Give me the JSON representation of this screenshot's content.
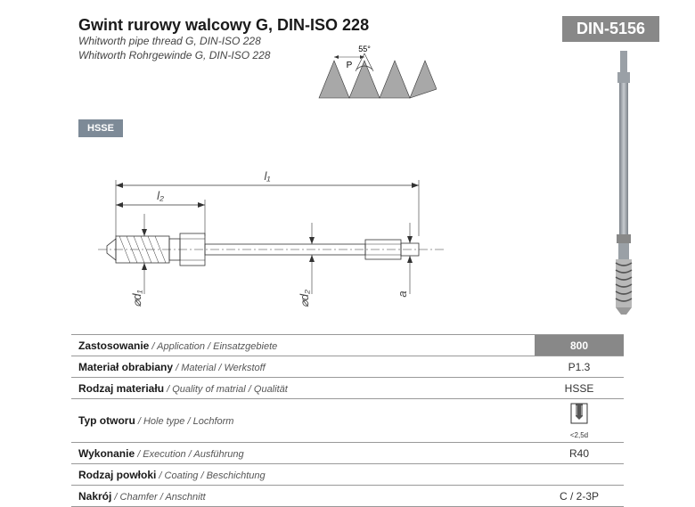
{
  "header": {
    "title_main": "Gwint rurowy walcowy G, DIN-ISO 228",
    "title_sub1": "Whitworth pipe thread G, DIN-ISO 228",
    "title_sub2": "Whitworth Rohrgewinde G, DIN-ISO 228",
    "din_badge": "DIN-5156",
    "hsse_badge": "HSSE"
  },
  "thread_profile": {
    "angle_label": "55°",
    "pitch_label": "P",
    "tooth_color": "#a8a8a8",
    "outline_color": "#333333"
  },
  "tech_drawing": {
    "labels": {
      "l1": "l₁",
      "l2": "l₂",
      "d1": "⌀d₁",
      "d2": "⌀d₂",
      "a": "a"
    },
    "stroke_color": "#333333",
    "fill_color": "#f5f5f5"
  },
  "tap": {
    "shank_color": "#9aa0a6",
    "flute_color": "#888"
  },
  "specs": [
    {
      "label_pl": "Zastosowanie",
      "label_en": "Application",
      "label_de": "Einsatzgebiete",
      "value": "800",
      "value_highlight": true
    },
    {
      "label_pl": "Materiał obrabiany",
      "label_en": "Material",
      "label_de": "Werkstoff",
      "value": "P1.3"
    },
    {
      "label_pl": "Rodzaj materiału",
      "label_en": "Quality of matrial",
      "label_de": "Qualität",
      "value": "HSSE"
    },
    {
      "label_pl": "Typ otworu",
      "label_en": "Hole type",
      "label_de": "Lochform",
      "value_icon": true,
      "icon_note": "<2,5d"
    },
    {
      "label_pl": "Wykonanie",
      "label_en": "Execution",
      "label_de": "Ausführung",
      "value": "R40"
    },
    {
      "label_pl": "Rodzaj powłoki",
      "label_en": "Coating",
      "label_de": "Beschichtung",
      "value": ""
    },
    {
      "label_pl": "Nakrój",
      "label_en": "Chamfer",
      "label_de": "Anschnitt",
      "value": "C / 2-3P"
    }
  ]
}
